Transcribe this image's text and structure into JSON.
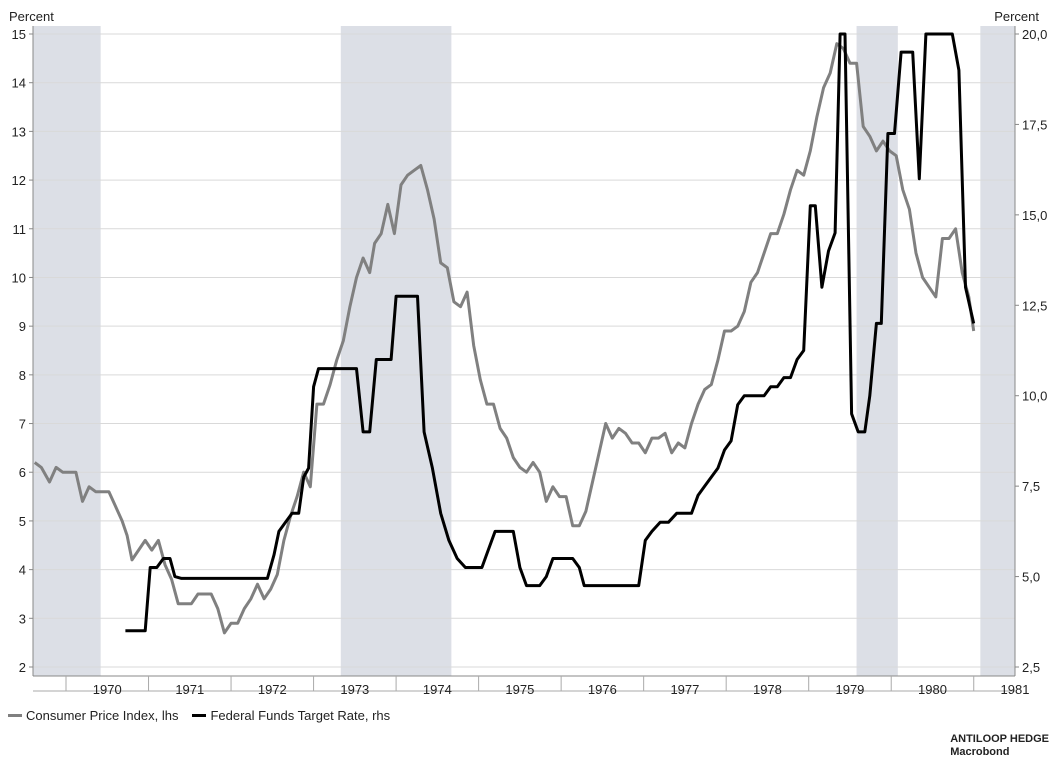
{
  "chart_data": {
    "type": "line",
    "title": "",
    "left_axis": {
      "unit_label": "Percent",
      "range": [
        2,
        15
      ],
      "ticks": [
        "2",
        "3",
        "4",
        "5",
        "6",
        "7",
        "8",
        "9",
        "10",
        "11",
        "12",
        "13",
        "14",
        "15"
      ]
    },
    "right_axis": {
      "unit_label": "Percent",
      "range": [
        2.5,
        20
      ],
      "ticks": [
        "2,5",
        "5,0",
        "7,5",
        "10,0",
        "12,5",
        "15,0",
        "17,5",
        "20,0"
      ]
    },
    "x_axis": {
      "range": [
        1969.6,
        1981.5
      ],
      "ticks": [
        "1970",
        "1971",
        "1972",
        "1973",
        "1974",
        "1975",
        "1976",
        "1977",
        "1978",
        "1979",
        "1980",
        "1981"
      ]
    },
    "grid": true,
    "legend_position": "bottom-left",
    "recessions": [
      [
        1969.58,
        1970.42
      ],
      [
        1973.33,
        1974.67
      ],
      [
        1979.58,
        1980.08
      ],
      [
        1981.08,
        1981.58
      ]
    ],
    "colors": {
      "cpi": "#808080",
      "ffr": "#000000",
      "recession": "#dcdfe6",
      "grid": "#d9d9d9"
    },
    "series": [
      {
        "name": "Consumer Price Index, lhs",
        "axis": "left",
        "points": [
          [
            1969.62,
            6.2
          ],
          [
            1969.7,
            6.1
          ],
          [
            1969.8,
            5.8
          ],
          [
            1969.88,
            6.1
          ],
          [
            1969.96,
            6.0
          ],
          [
            1970.04,
            6.0
          ],
          [
            1970.12,
            6.0
          ],
          [
            1970.2,
            5.4
          ],
          [
            1970.28,
            5.7
          ],
          [
            1970.36,
            5.6
          ],
          [
            1970.44,
            5.6
          ],
          [
            1970.52,
            5.6
          ],
          [
            1970.6,
            5.3
          ],
          [
            1970.68,
            5.0
          ],
          [
            1970.74,
            4.7
          ],
          [
            1970.8,
            4.2
          ],
          [
            1970.88,
            4.4
          ],
          [
            1970.96,
            4.6
          ],
          [
            1971.04,
            4.4
          ],
          [
            1971.12,
            4.6
          ],
          [
            1971.2,
            4.1
          ],
          [
            1971.28,
            3.8
          ],
          [
            1971.36,
            3.3
          ],
          [
            1971.44,
            3.3
          ],
          [
            1971.52,
            3.3
          ],
          [
            1971.6,
            3.5
          ],
          [
            1971.68,
            3.5
          ],
          [
            1971.76,
            3.5
          ],
          [
            1971.84,
            3.2
          ],
          [
            1971.92,
            2.7
          ],
          [
            1972.0,
            2.9
          ],
          [
            1972.08,
            2.9
          ],
          [
            1972.16,
            3.2
          ],
          [
            1972.24,
            3.4
          ],
          [
            1972.32,
            3.7
          ],
          [
            1972.4,
            3.4
          ],
          [
            1972.48,
            3.6
          ],
          [
            1972.56,
            3.9
          ],
          [
            1972.64,
            4.6
          ],
          [
            1972.72,
            5.1
          ],
          [
            1972.8,
            5.5
          ],
          [
            1972.88,
            6.0
          ],
          [
            1972.96,
            5.7
          ],
          [
            1973.04,
            7.4
          ],
          [
            1973.12,
            7.4
          ],
          [
            1973.2,
            7.8
          ],
          [
            1973.28,
            8.3
          ],
          [
            1973.36,
            8.7
          ],
          [
            1973.44,
            9.4
          ],
          [
            1973.52,
            10.0
          ],
          [
            1973.6,
            10.4
          ],
          [
            1973.68,
            10.1
          ],
          [
            1973.74,
            10.7
          ],
          [
            1973.82,
            10.9
          ],
          [
            1973.9,
            11.5
          ],
          [
            1973.98,
            10.9
          ],
          [
            1974.06,
            11.9
          ],
          [
            1974.14,
            12.1
          ],
          [
            1974.22,
            12.2
          ],
          [
            1974.3,
            12.3
          ],
          [
            1974.38,
            11.8
          ],
          [
            1974.46,
            11.2
          ],
          [
            1974.54,
            10.3
          ],
          [
            1974.62,
            10.2
          ],
          [
            1974.7,
            9.5
          ],
          [
            1974.78,
            9.4
          ],
          [
            1974.86,
            9.7
          ],
          [
            1974.94,
            8.6
          ],
          [
            1975.02,
            7.9
          ],
          [
            1975.1,
            7.4
          ],
          [
            1975.18,
            7.4
          ],
          [
            1975.26,
            6.9
          ],
          [
            1975.34,
            6.7
          ],
          [
            1975.42,
            6.3
          ],
          [
            1975.5,
            6.1
          ],
          [
            1975.58,
            6.0
          ],
          [
            1975.66,
            6.2
          ],
          [
            1975.74,
            6.0
          ],
          [
            1975.82,
            5.4
          ],
          [
            1975.9,
            5.7
          ],
          [
            1975.98,
            5.5
          ],
          [
            1976.06,
            5.5
          ],
          [
            1976.14,
            4.9
          ],
          [
            1976.22,
            4.9
          ],
          [
            1976.3,
            5.2
          ],
          [
            1976.38,
            5.8
          ],
          [
            1976.46,
            6.4
          ],
          [
            1976.54,
            7.0
          ],
          [
            1976.62,
            6.7
          ],
          [
            1976.7,
            6.9
          ],
          [
            1976.78,
            6.8
          ],
          [
            1976.86,
            6.6
          ],
          [
            1976.94,
            6.6
          ],
          [
            1977.02,
            6.4
          ],
          [
            1977.1,
            6.7
          ],
          [
            1977.18,
            6.7
          ],
          [
            1977.26,
            6.8
          ],
          [
            1977.34,
            6.4
          ],
          [
            1977.42,
            6.6
          ],
          [
            1977.5,
            6.5
          ],
          [
            1977.58,
            7.0
          ],
          [
            1977.66,
            7.4
          ],
          [
            1977.74,
            7.7
          ],
          [
            1977.82,
            7.8
          ],
          [
            1977.9,
            8.3
          ],
          [
            1977.98,
            8.9
          ],
          [
            1978.06,
            8.9
          ],
          [
            1978.14,
            9.0
          ],
          [
            1978.22,
            9.3
          ],
          [
            1978.3,
            9.9
          ],
          [
            1978.38,
            10.1
          ],
          [
            1978.46,
            10.5
          ],
          [
            1978.54,
            10.9
          ],
          [
            1978.62,
            10.9
          ],
          [
            1978.7,
            11.3
          ],
          [
            1978.78,
            11.8
          ],
          [
            1978.86,
            12.2
          ],
          [
            1978.94,
            12.1
          ],
          [
            1979.02,
            12.6
          ],
          [
            1979.1,
            13.3
          ],
          [
            1979.18,
            13.9
          ],
          [
            1979.26,
            14.2
          ],
          [
            1979.34,
            14.8
          ],
          [
            1979.42,
            14.7
          ],
          [
            1979.5,
            14.4
          ],
          [
            1979.58,
            14.4
          ],
          [
            1979.66,
            13.1
          ],
          [
            1979.74,
            12.9
          ],
          [
            1979.82,
            12.6
          ],
          [
            1979.9,
            12.8
          ],
          [
            1979.98,
            12.6
          ],
          [
            1980.06,
            12.5
          ],
          [
            1980.14,
            11.8
          ],
          [
            1980.22,
            11.4
          ],
          [
            1980.3,
            10.5
          ],
          [
            1980.38,
            10.0
          ],
          [
            1980.46,
            9.8
          ],
          [
            1980.54,
            9.6
          ],
          [
            1980.62,
            10.8
          ],
          [
            1980.7,
            10.8
          ],
          [
            1980.78,
            11.0
          ],
          [
            1980.86,
            10.1
          ],
          [
            1980.94,
            9.6
          ],
          [
            1981.0,
            8.9
          ]
        ]
      },
      {
        "name": "Federal Funds Target Rate, rhs",
        "axis": "right",
        "points": [
          [
            1970.72,
            3.5
          ],
          [
            1970.86,
            3.5
          ],
          [
            1970.96,
            3.5
          ],
          [
            1971.02,
            5.25
          ],
          [
            1971.1,
            5.25
          ],
          [
            1971.18,
            5.5
          ],
          [
            1971.26,
            5.5
          ],
          [
            1971.32,
            5.0
          ],
          [
            1971.4,
            4.95
          ],
          [
            1971.5,
            4.95
          ],
          [
            1971.7,
            4.95
          ],
          [
            1972.1,
            4.95
          ],
          [
            1972.44,
            4.95
          ],
          [
            1972.52,
            5.6
          ],
          [
            1972.58,
            6.25
          ],
          [
            1972.66,
            6.5
          ],
          [
            1972.74,
            6.75
          ],
          [
            1972.82,
            6.75
          ],
          [
            1972.88,
            7.75
          ],
          [
            1972.94,
            8.0
          ],
          [
            1973.0,
            10.25
          ],
          [
            1973.06,
            10.75
          ],
          [
            1973.14,
            10.75
          ],
          [
            1973.3,
            10.75
          ],
          [
            1973.52,
            10.75
          ],
          [
            1973.6,
            9.0
          ],
          [
            1973.68,
            9.0
          ],
          [
            1973.76,
            11.0
          ],
          [
            1973.84,
            11.0
          ],
          [
            1973.94,
            11.0
          ],
          [
            1974.0,
            12.75
          ],
          [
            1974.08,
            12.75
          ],
          [
            1974.18,
            12.75
          ],
          [
            1974.26,
            12.75
          ],
          [
            1974.34,
            9.0
          ],
          [
            1974.44,
            8.0
          ],
          [
            1974.54,
            6.75
          ],
          [
            1974.64,
            6.0
          ],
          [
            1974.74,
            5.5
          ],
          [
            1974.84,
            5.25
          ],
          [
            1974.94,
            5.25
          ],
          [
            1975.04,
            5.25
          ],
          [
            1975.12,
            5.75
          ],
          [
            1975.2,
            6.25
          ],
          [
            1975.3,
            6.25
          ],
          [
            1975.42,
            6.25
          ],
          [
            1975.5,
            5.25
          ],
          [
            1975.58,
            4.75
          ],
          [
            1975.66,
            4.75
          ],
          [
            1975.74,
            4.75
          ],
          [
            1975.82,
            5.0
          ],
          [
            1975.9,
            5.5
          ],
          [
            1975.98,
            5.5
          ],
          [
            1976.06,
            5.5
          ],
          [
            1976.14,
            5.5
          ],
          [
            1976.22,
            5.25
          ],
          [
            1976.28,
            4.75
          ],
          [
            1976.36,
            4.75
          ],
          [
            1976.46,
            4.75
          ],
          [
            1976.66,
            4.75
          ],
          [
            1976.76,
            4.75
          ],
          [
            1976.84,
            4.75
          ],
          [
            1976.94,
            4.75
          ],
          [
            1977.02,
            6.0
          ],
          [
            1977.1,
            6.25
          ],
          [
            1977.2,
            6.5
          ],
          [
            1977.3,
            6.5
          ],
          [
            1977.4,
            6.75
          ],
          [
            1977.5,
            6.75
          ],
          [
            1977.58,
            6.75
          ],
          [
            1977.66,
            7.25
          ],
          [
            1977.74,
            7.5
          ],
          [
            1977.82,
            7.75
          ],
          [
            1977.9,
            8.0
          ],
          [
            1977.98,
            8.5
          ],
          [
            1978.06,
            8.75
          ],
          [
            1978.14,
            9.75
          ],
          [
            1978.22,
            10.0
          ],
          [
            1978.3,
            10.0
          ],
          [
            1978.38,
            10.0
          ],
          [
            1978.46,
            10.0
          ],
          [
            1978.54,
            10.25
          ],
          [
            1978.62,
            10.25
          ],
          [
            1978.7,
            10.5
          ],
          [
            1978.78,
            10.5
          ],
          [
            1978.86,
            11.0
          ],
          [
            1978.94,
            11.25
          ],
          [
            1979.02,
            15.25
          ],
          [
            1979.08,
            15.25
          ],
          [
            1979.16,
            13.0
          ],
          [
            1979.24,
            14.0
          ],
          [
            1979.32,
            14.5
          ],
          [
            1979.38,
            20.0
          ],
          [
            1979.44,
            20.0
          ],
          [
            1979.52,
            9.5
          ],
          [
            1979.6,
            9.0
          ],
          [
            1979.68,
            9.0
          ],
          [
            1979.74,
            10.0
          ],
          [
            1979.82,
            12.0
          ],
          [
            1979.88,
            12.0
          ],
          [
            1979.96,
            17.25
          ],
          [
            1980.04,
            17.25
          ],
          [
            1980.12,
            19.5
          ],
          [
            1980.2,
            19.5
          ],
          [
            1980.26,
            19.5
          ],
          [
            1980.34,
            16.0
          ],
          [
            1980.42,
            20.0
          ],
          [
            1980.5,
            20.0
          ],
          [
            1980.58,
            20.0
          ],
          [
            1980.66,
            20.0
          ],
          [
            1980.74,
            20.0
          ],
          [
            1980.82,
            19.0
          ],
          [
            1980.9,
            13.0
          ],
          [
            1981.0,
            12.0
          ]
        ]
      }
    ],
    "legend": [
      "Consumer Price Index, lhs",
      "Federal Funds Target Rate, rhs"
    ]
  },
  "credit": {
    "line1": "ANTILOOP HEDGE",
    "line2": "Macrobond"
  }
}
